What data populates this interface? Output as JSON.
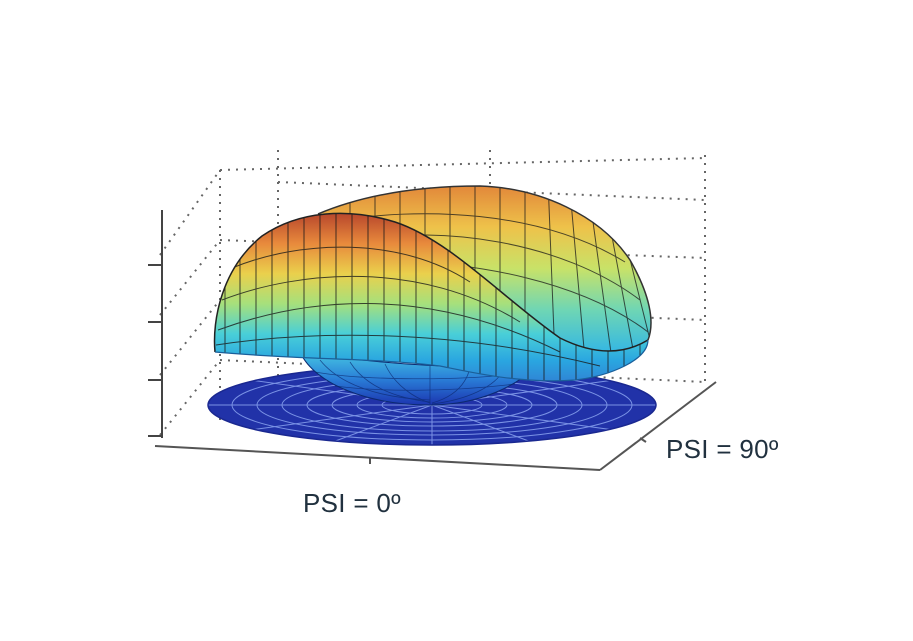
{
  "chart_data": {
    "type": "surface-3d",
    "title": "",
    "annotations": [
      "PSI = 0º",
      "PSI = 90º"
    ],
    "base_shape": "polar disk mesh",
    "colormap": [
      "#1a2ca8",
      "#1f64d8",
      "#2bb2e6",
      "#6fd8b0",
      "#e4e452",
      "#f0a43c",
      "#c8502a"
    ],
    "grid": true,
    "axes_box": "dotted"
  }
}
